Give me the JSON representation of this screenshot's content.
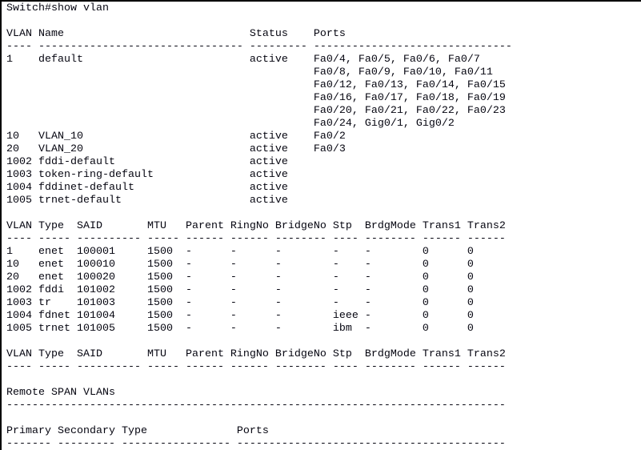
{
  "terminal": {
    "background_color": "#ffffff",
    "border_color": "#000000",
    "text_color": "#050510",
    "prompt": "Switch#",
    "command": "show vlan",
    "command_line": "Switch#show vlan",
    "vlan_status_table": {
      "headers": [
        "VLAN",
        "Name",
        "Status",
        "Ports"
      ],
      "rows": [
        {
          "vlan": "1",
          "name": "default",
          "status": "active",
          "ports": [
            "Fa0/4, Fa0/5, Fa0/6, Fa0/7",
            "Fa0/8, Fa0/9, Fa0/10, Fa0/11",
            "Fa0/12, Fa0/13, Fa0/14, Fa0/15",
            "Fa0/16, Fa0/17, Fa0/18, Fa0/19",
            "Fa0/20, Fa0/21, Fa0/22, Fa0/23",
            "Fa0/24, Gig0/1, Gig0/2"
          ]
        },
        {
          "vlan": "10",
          "name": "VLAN_10",
          "status": "active",
          "ports": [
            "Fa0/2"
          ]
        },
        {
          "vlan": "20",
          "name": "VLAN_20",
          "status": "active",
          "ports": [
            "Fa0/3"
          ]
        },
        {
          "vlan": "1002",
          "name": "fddi-default",
          "status": "active",
          "ports": []
        },
        {
          "vlan": "1003",
          "name": "token-ring-default",
          "status": "active",
          "ports": []
        },
        {
          "vlan": "1004",
          "name": "fddinet-default",
          "status": "active",
          "ports": []
        },
        {
          "vlan": "1005",
          "name": "trnet-default",
          "status": "active",
          "ports": []
        }
      ]
    },
    "vlan_type_table": {
      "headers": [
        "VLAN",
        "Type",
        "SAID",
        "MTU",
        "Parent",
        "RingNo",
        "BridgeNo",
        "Stp",
        "BrdgMode",
        "Trans1",
        "Trans2"
      ],
      "rows": [
        [
          "1",
          "enet",
          "100001",
          "1500",
          "-",
          "-",
          "-",
          "-",
          "-",
          "0",
          "0"
        ],
        [
          "10",
          "enet",
          "100010",
          "1500",
          "-",
          "-",
          "-",
          "-",
          "-",
          "0",
          "0"
        ],
        [
          "20",
          "enet",
          "100020",
          "1500",
          "-",
          "-",
          "-",
          "-",
          "-",
          "0",
          "0"
        ],
        [
          "1002",
          "fddi",
          "101002",
          "1500",
          "-",
          "-",
          "-",
          "-",
          "-",
          "0",
          "0"
        ],
        [
          "1003",
          "tr",
          "101003",
          "1500",
          "-",
          "-",
          "-",
          "-",
          "-",
          "0",
          "0"
        ],
        [
          "1004",
          "fdnet",
          "101004",
          "1500",
          "-",
          "-",
          "-",
          "ieee",
          "-",
          "0",
          "0"
        ],
        [
          "1005",
          "trnet",
          "101005",
          "1500",
          "-",
          "-",
          "-",
          "ibm",
          "-",
          "0",
          "0"
        ]
      ]
    },
    "vlan_type_table_repeat": {
      "headers": [
        "VLAN",
        "Type",
        "SAID",
        "MTU",
        "Parent",
        "RingNo",
        "BridgeNo",
        "Stp",
        "BrdgMode",
        "Trans1",
        "Trans2"
      ],
      "rows": []
    },
    "remote_span": {
      "title": "Remote SPAN VLANs",
      "vlans": []
    },
    "private_vlan_table": {
      "headers": [
        "Primary",
        "Secondary",
        "Type",
        "Ports"
      ],
      "rows": []
    },
    "screen_lines": [
      "Switch#show vlan",
      "",
      "VLAN Name                             Status    Ports",
      "---- -------------------------------- --------- -------------------------------",
      "1    default                          active    Fa0/4, Fa0/5, Fa0/6, Fa0/7",
      "                                                Fa0/8, Fa0/9, Fa0/10, Fa0/11",
      "                                                Fa0/12, Fa0/13, Fa0/14, Fa0/15",
      "                                                Fa0/16, Fa0/17, Fa0/18, Fa0/19",
      "                                                Fa0/20, Fa0/21, Fa0/22, Fa0/23",
      "                                                Fa0/24, Gig0/1, Gig0/2",
      "10   VLAN_10                          active    Fa0/2",
      "20   VLAN_20                          active    Fa0/3",
      "1002 fddi-default                     active",
      "1003 token-ring-default               active",
      "1004 fddinet-default                  active",
      "1005 trnet-default                    active",
      "",
      "VLAN Type  SAID       MTU   Parent RingNo BridgeNo Stp  BrdgMode Trans1 Trans2",
      "---- ----- ---------- ----- ------ ------ -------- ---- -------- ------ ------",
      "1    enet  100001     1500  -      -      -        -    -        0      0",
      "10   enet  100010     1500  -      -      -        -    -        0      0",
      "20   enet  100020     1500  -      -      -        -    -        0      0",
      "1002 fddi  101002     1500  -      -      -        -    -        0      0",
      "1003 tr    101003     1500  -      -      -        -    -        0      0",
      "1004 fdnet 101004     1500  -      -      -        ieee -        0      0",
      "1005 trnet 101005     1500  -      -      -        ibm  -        0      0",
      "",
      "VLAN Type  SAID       MTU   Parent RingNo BridgeNo Stp  BrdgMode Trans1 Trans2",
      "---- ----- ---------- ----- ------ ------ -------- ---- -------- ------ ------",
      "",
      "Remote SPAN VLANs",
      "------------------------------------------------------------------------------",
      "",
      "Primary Secondary Type              Ports",
      "------- --------- ----------------- ------------------------------------------"
    ]
  }
}
